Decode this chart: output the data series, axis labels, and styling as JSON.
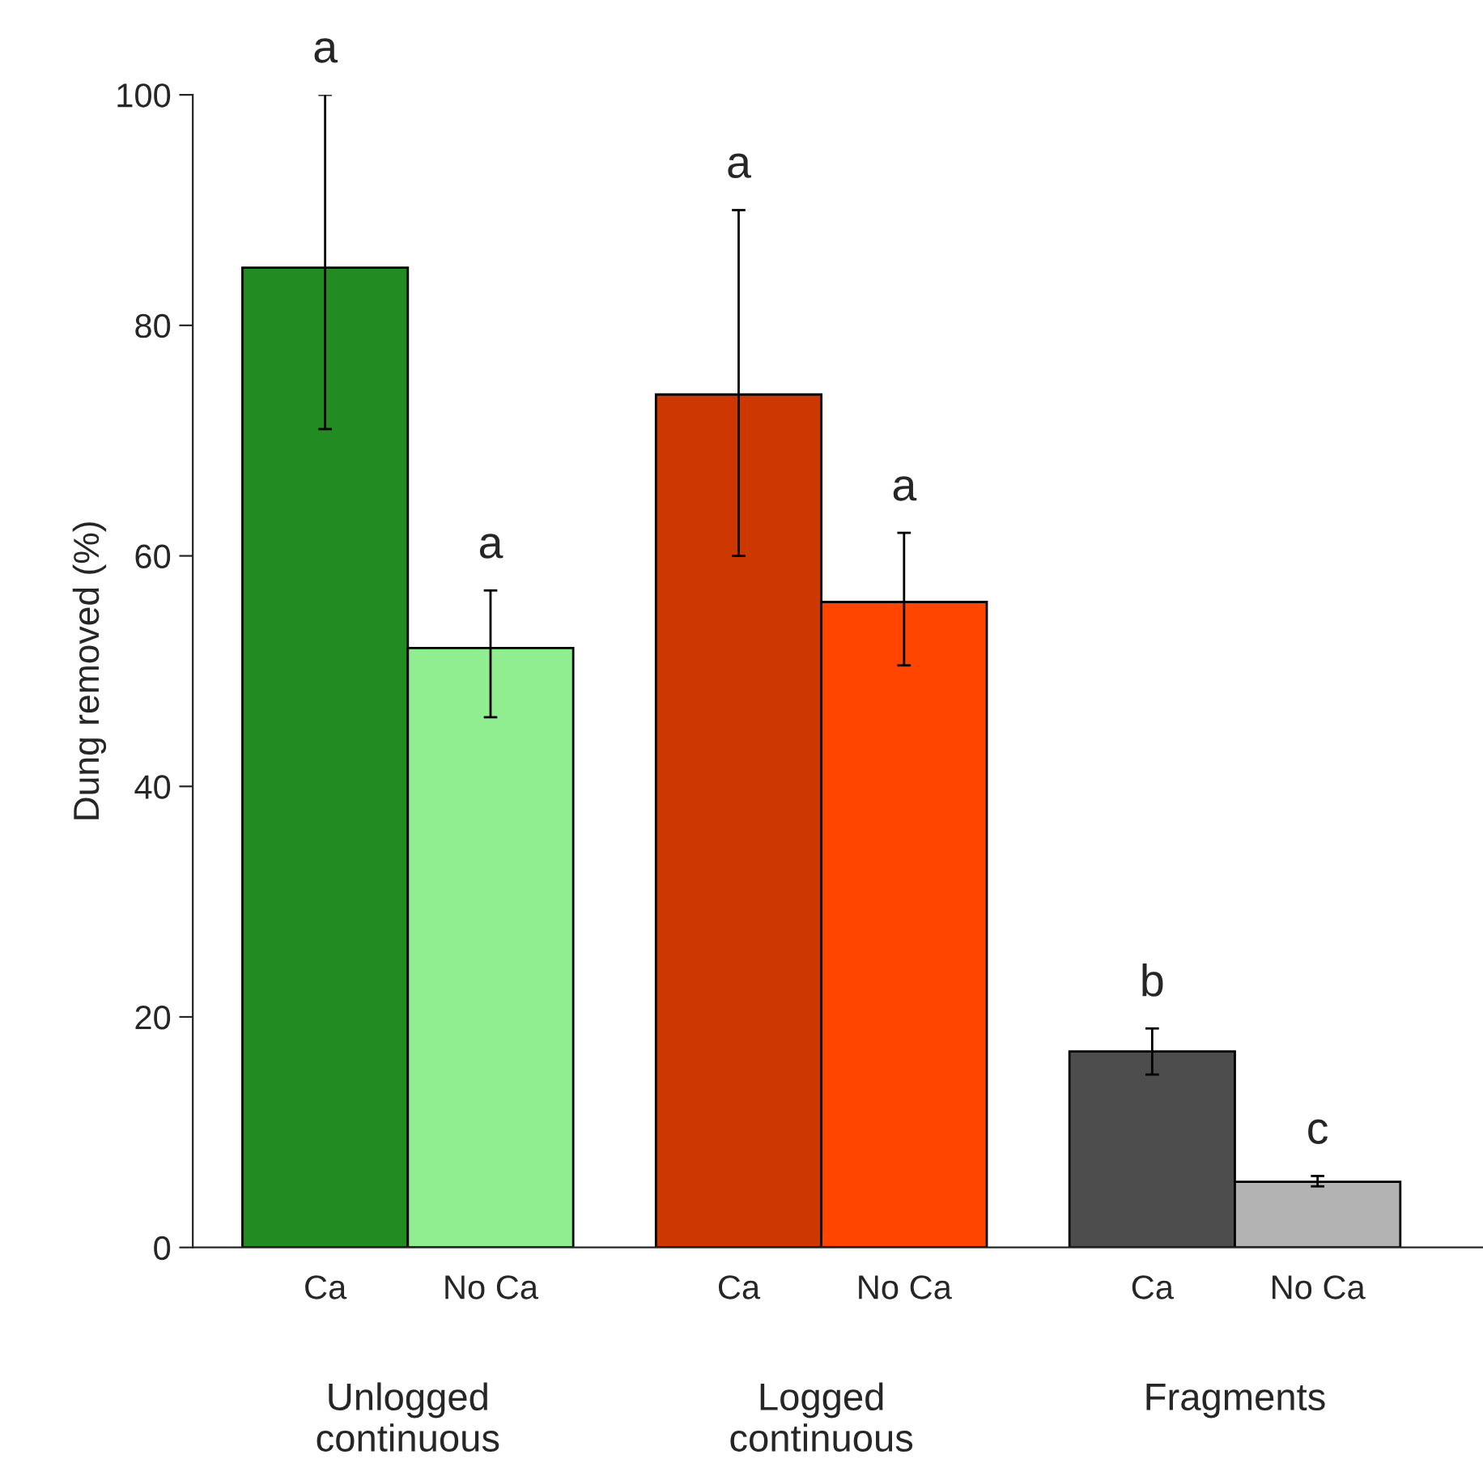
{
  "chart_data": {
    "type": "bar",
    "ylabel": "Dung removed (%)",
    "categories": [
      "Ca",
      "No Ca",
      "Ca",
      "No Ca",
      "Ca",
      "No Ca"
    ],
    "values": [
      85,
      52,
      74,
      56,
      17,
      5.7
    ],
    "colors": [
      "#228b22",
      "#90ee90",
      "#cd3700",
      "#ff4500",
      "#4d4d4d",
      "#b3b3b3"
    ],
    "errors": [
      [
        71,
        100
      ],
      [
        46,
        57
      ],
      [
        60,
        90
      ],
      [
        50.5,
        62
      ],
      [
        15,
        19
      ],
      [
        5.3,
        6.2
      ]
    ],
    "ylim": [
      0,
      100
    ],
    "yticks": [
      0,
      20,
      40,
      60,
      80,
      100
    ],
    "annotations": [
      "a",
      "a",
      "a",
      "a",
      "b",
      "c",
      "Unlogged\ncontinuous",
      "Logged\ncontinuous",
      "Fragments"
    ],
    "grid": false,
    "legend": false
  }
}
